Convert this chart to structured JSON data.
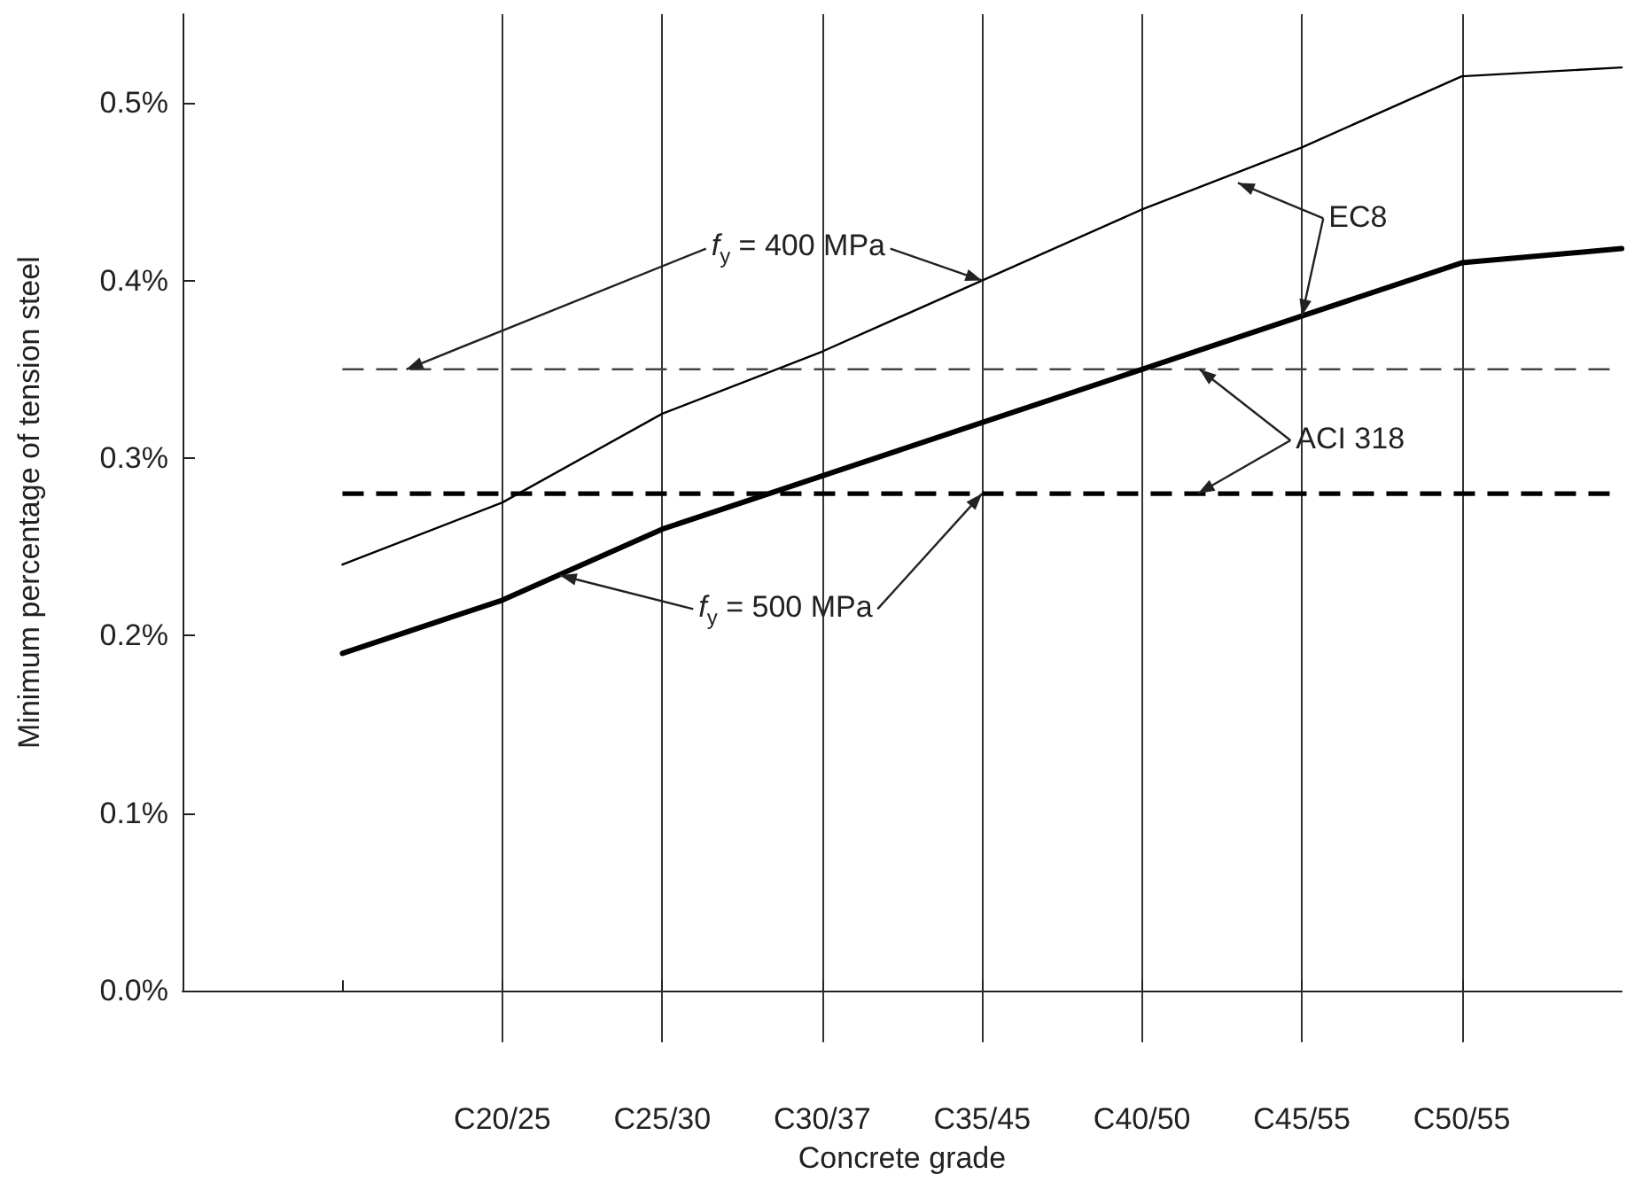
{
  "chart_data": {
    "type": "line",
    "xlabel": "Concrete grade",
    "ylabel": "Minimum percentage of tension steel",
    "categories": [
      null,
      null,
      "C20/25",
      "C25/30",
      "C30/37",
      "C35/45",
      "C40/50",
      "C45/55",
      "C50/55",
      null
    ],
    "series": [
      {
        "color": "#000000",
        "values": [
          null,
          0.24,
          0.275,
          0.325,
          0.36,
          0.4,
          0.44,
          0.475,
          0.515,
          0.52
        ]
      },
      {
        "color": "#000000",
        "values": [
          null,
          0.19,
          0.22,
          0.26,
          0.29,
          0.32,
          0.35,
          0.38,
          0.41,
          0.418
        ]
      }
    ],
    "ylim": [
      0,
      0.55
    ],
    "yticks": [
      {
        "value": 0,
        "label": "0.0%"
      },
      {
        "value": 0.1,
        "label": "0.1%"
      },
      {
        "value": 0.2,
        "label": "0.2%"
      },
      {
        "value": 0.3,
        "label": "0.3%"
      },
      {
        "value": 0.4,
        "label": "0.4%"
      },
      {
        "value": 0.5,
        "label": "0.5%"
      }
    ],
    "ref_lines": [
      {
        "axis": "y",
        "value": 0.35,
        "color": "#444444",
        "line_style": "dashed"
      },
      {
        "axis": "y",
        "value": 0.28,
        "color": "#000000",
        "line_style": "dashed"
      }
    ],
    "annotations": [
      {
        "text": "f$_{y}$ = 400 MPa",
        "x": "C35/45",
        "y": 0.4
      },
      {
        "text": "f$_{y}$ = 500 MPa",
        "x": "C35/45",
        "y": 0.28
      },
      {
        "text": "EC8",
        "x": "C45/55",
        "y": 0.38
      },
      {
        "text": "ACI 318",
        "y": 0.35
      }
    ],
    "grid": "x",
    "marker": "none",
    "line_style": "solid"
  }
}
